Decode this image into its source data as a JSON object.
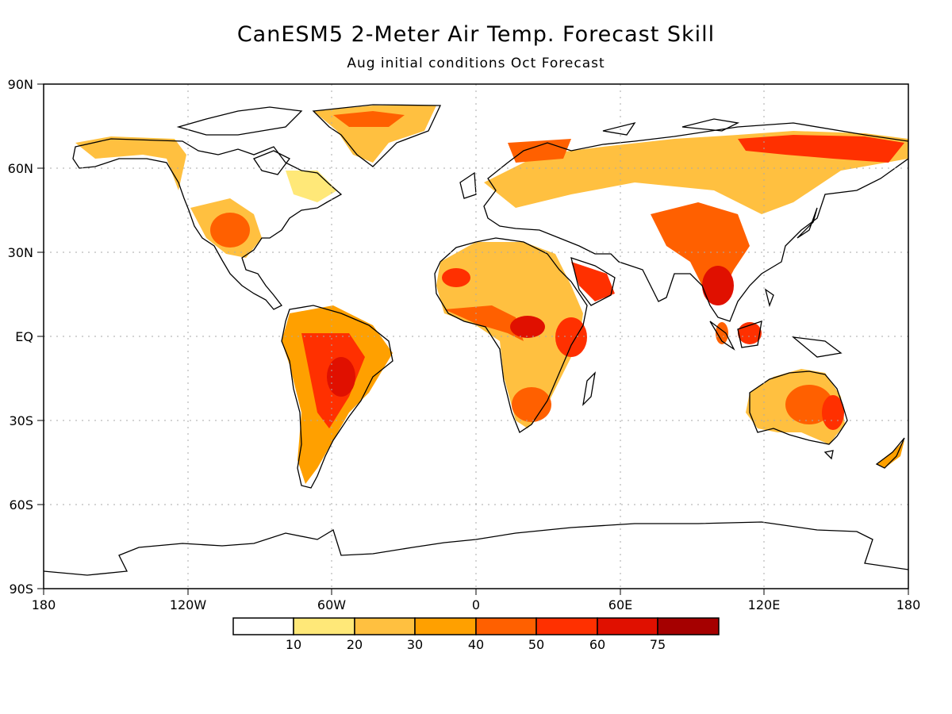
{
  "title": "CanESM5 2-Meter Air Temp. Forecast Skill",
  "subtitle": "Aug initial conditions   Oct Forecast",
  "map": {
    "lat_ticks": [
      "90N",
      "60N",
      "30N",
      "EQ",
      "30S",
      "60S",
      "90S"
    ],
    "lon_ticks": [
      "180",
      "120W",
      "60W",
      "0",
      "60E",
      "120E",
      "180"
    ]
  },
  "colorbar": {
    "colors": [
      "#ffffff",
      "#ffe878",
      "#ffc040",
      "#ffa000",
      "#ff6000",
      "#ff3000",
      "#e01000",
      "#a50000"
    ],
    "labels": [
      "10",
      "20",
      "30",
      "40",
      "50",
      "60",
      "75"
    ]
  },
  "colors": {
    "coastline": "#000000",
    "grid": "#aaaaaa"
  }
}
